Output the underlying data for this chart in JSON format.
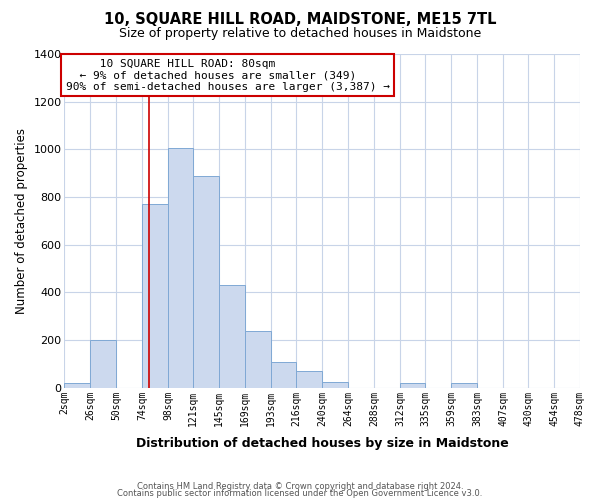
{
  "title": "10, SQUARE HILL ROAD, MAIDSTONE, ME15 7TL",
  "subtitle": "Size of property relative to detached houses in Maidstone",
  "xlabel": "Distribution of detached houses by size in Maidstone",
  "ylabel": "Number of detached properties",
  "bar_color": "#ccd9ee",
  "bar_edge_color": "#7fa8d4",
  "bin_edges": [
    2,
    26,
    50,
    74,
    98,
    121,
    145,
    169,
    193,
    216,
    240,
    264,
    288,
    312,
    335,
    359,
    383,
    407,
    430,
    454,
    478
  ],
  "bin_labels": [
    "2sqm",
    "26sqm",
    "50sqm",
    "74sqm",
    "98sqm",
    "121sqm",
    "145sqm",
    "169sqm",
    "193sqm",
    "216sqm",
    "240sqm",
    "264sqm",
    "288sqm",
    "312sqm",
    "335sqm",
    "359sqm",
    "383sqm",
    "407sqm",
    "430sqm",
    "454sqm",
    "478sqm"
  ],
  "counts": [
    20,
    200,
    0,
    770,
    1005,
    890,
    430,
    240,
    110,
    70,
    25,
    0,
    0,
    20,
    0,
    20,
    0,
    0,
    0,
    0
  ],
  "ylim": [
    0,
    1400
  ],
  "yticks": [
    0,
    200,
    400,
    600,
    800,
    1000,
    1200,
    1400
  ],
  "property_line_x": 80,
  "annotation_title": "10 SQUARE HILL ROAD: 80sqm",
  "annotation_line1": "← 9% of detached houses are smaller (349)",
  "annotation_line2": "90% of semi-detached houses are larger (3,387) →",
  "annotation_box_color": "#ffffff",
  "annotation_box_edge": "#cc0000",
  "property_line_color": "#cc0000",
  "footnote1": "Contains HM Land Registry data © Crown copyright and database right 2024.",
  "footnote2": "Contains public sector information licensed under the Open Government Licence v3.0.",
  "background_color": "#ffffff",
  "grid_color": "#c8d4e8"
}
